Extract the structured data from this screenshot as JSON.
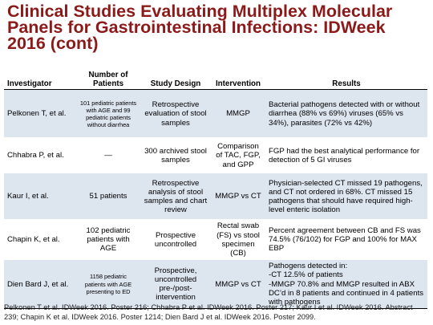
{
  "slide": {
    "title": "Clinical Studies Evaluating Multiplex Molecular Panels for Gastrointestinal Infections: IDWeek 2016 (cont)"
  },
  "table": {
    "headers": {
      "investigator": "Investigator",
      "patients": "Number of\nPatients",
      "design": "Study Design",
      "intervention": "Intervention",
      "results": "Results"
    },
    "rows": [
      {
        "investigator": "Pelkonen T, et al.",
        "patients": "101 pediatric patients with AGE and 99 pediatric patients without diarrhea",
        "design": "Retrospective evaluation of stool samples",
        "intervention": "MMGP",
        "results": "Bacterial pathogens detected with or without diarrhea (88% vs 69%) viruses (65% vs 34%), parasites (72% vs 42%)"
      },
      {
        "investigator": "Chhabra P, et al.",
        "patients": "—",
        "design": "300 archived stool samples",
        "intervention": "Comparison of TAC, FGP, and GPP",
        "results": "FGP had the best analytical performance for detection of 5 GI viruses"
      },
      {
        "investigator": "Kaur I, et al.",
        "patients": "51 patients",
        "design": "Retrospective analysis of stool samples and chart review",
        "intervention": "MMGP vs CT",
        "results": "Physician-selected CT missed 19 pathogens, and CT not ordered in 68%. CT missed 15 pathogens that should have required high-level enteric isolation"
      },
      {
        "investigator": "Chapin K, et al.",
        "patients": "102 pediatric patients with AGE",
        "design": "Prospective uncontrolled",
        "intervention": "Rectal swab (FS) vs stool specimen (CB)",
        "results": "Percent agreement between CB and FS was 74.5% (76/102) for FGP and 100% for MAX EBP"
      },
      {
        "investigator": "Dien Bard J, et al.",
        "patients": "1158 pediatric patients with AGE presenting to ED",
        "design": "Prospective, uncontrolled pre-/post-intervention",
        "intervention": "MMGP vs CT",
        "results": "Pathogens detected in:\n-CT 12.5% of patients\n-MMGP 70.8% and MMGP resulted in ABX DC’d in 8 patients and continued in 4 patients with pathogens"
      }
    ]
  },
  "footnote": "Pelkonen T et al. IDWeek 2016. Poster 216; Chhabra P et al. IDWeek 2016. Poster 217; Kaur I et al. IDWeek 2016. Abstract 239; Chapin K et al. IDWeek 2016. Poster 1214; Dien Bard J et al. IDWeek 2016. Poster 2099."
}
